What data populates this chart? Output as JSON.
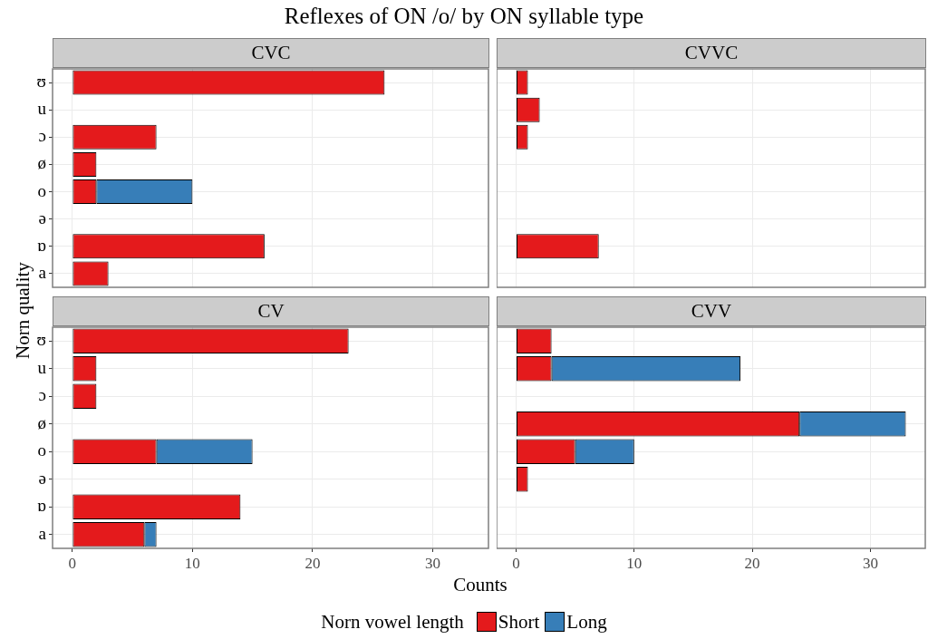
{
  "chart_data": [
    {
      "type": "bar",
      "title": "Reflexes of ON /o/ by ON syllable type",
      "subtitle": "CVC",
      "ylabel": "Norn quality",
      "orientation": "horizontal",
      "stacked": true,
      "grid": true,
      "legend": "bottom",
      "legend_title": "Norn vowel length",
      "tick_labels": "y",
      "xlim": [
        -1.65,
        34.65
      ],
      "xticks": [
        0,
        10,
        20,
        30
      ],
      "categories": [
        "ʊ",
        "u",
        "ɔ",
        "ø",
        "o",
        "ə",
        "ɒ",
        "a"
      ],
      "series": [
        {
          "name": "Short",
          "color": "#e41a1c",
          "values": [
            26,
            null,
            7,
            2,
            2,
            null,
            16,
            3
          ]
        },
        {
          "name": "Long",
          "color": "#377eb8",
          "values": [
            null,
            null,
            null,
            null,
            8,
            null,
            null,
            null
          ]
        }
      ]
    },
    {
      "type": "bar",
      "subtitle": "CVVC",
      "orientation": "horizontal",
      "stacked": true,
      "grid": true,
      "tick_labels": false,
      "xlim": [
        -1.65,
        34.65
      ],
      "xticks": [
        0,
        10,
        20,
        30
      ],
      "categories": [
        null,
        null,
        null,
        null,
        null,
        null,
        null,
        null
      ],
      "series": [
        {
          "color": "#e41a1c",
          "values": [
            1,
            2,
            1,
            null,
            null,
            null,
            7,
            null
          ]
        },
        {
          "color": "#377eb8",
          "values": [
            null,
            null,
            null,
            null,
            null,
            null,
            null,
            null
          ]
        }
      ]
    },
    {
      "type": "bar",
      "subtitle": "CV",
      "xlabel": "Counts",
      "orientation": "horizontal",
      "stacked": true,
      "grid": true,
      "xlim": [
        -1.65,
        34.65
      ],
      "xticks": [
        0,
        10,
        20,
        30
      ],
      "categories": [
        "ʊ",
        "u",
        "ɔ",
        "ø",
        "o",
        "ə",
        "ɒ",
        "a"
      ],
      "series": [
        {
          "color": "#e41a1c",
          "values": [
            23,
            2,
            2,
            null,
            7,
            null,
            14,
            6
          ]
        },
        {
          "color": "#377eb8",
          "values": [
            null,
            null,
            null,
            null,
            8,
            null,
            null,
            1
          ]
        }
      ]
    },
    {
      "type": "bar",
      "subtitle": "CVV",
      "orientation": "horizontal",
      "stacked": true,
      "grid": true,
      "tick_labels": "x",
      "xlim": [
        -1.65,
        34.65
      ],
      "xticks": [
        0,
        10,
        20,
        30
      ],
      "categories": [
        null,
        null,
        null,
        null,
        null,
        null,
        null,
        null
      ],
      "series": [
        {
          "color": "#e41a1c",
          "values": [
            3,
            3,
            null,
            24,
            5,
            1,
            null,
            null
          ]
        },
        {
          "color": "#377eb8",
          "values": [
            null,
            16,
            null,
            9,
            5,
            null,
            null,
            null
          ]
        }
      ]
    }
  ]
}
